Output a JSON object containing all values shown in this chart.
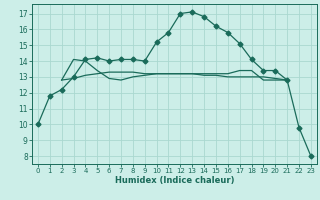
{
  "bg_color": "#cceee8",
  "grid_color": "#aad8d0",
  "line_color": "#1a6b5a",
  "xlabel": "Humidex (Indice chaleur)",
  "xlim": [
    -0.5,
    23.5
  ],
  "ylim": [
    7.5,
    17.6
  ],
  "yticks": [
    8,
    9,
    10,
    11,
    12,
    13,
    14,
    15,
    16,
    17
  ],
  "xticks": [
    0,
    1,
    2,
    3,
    4,
    5,
    6,
    7,
    8,
    9,
    10,
    11,
    12,
    13,
    14,
    15,
    16,
    17,
    18,
    19,
    20,
    21,
    22,
    23
  ],
  "curve1_x": [
    0,
    1,
    2,
    3,
    4,
    5,
    6,
    7,
    8,
    9,
    10,
    11,
    12,
    13,
    14,
    15,
    16,
    17,
    18,
    19,
    20,
    21,
    22,
    23
  ],
  "curve1_y": [
    10.0,
    11.8,
    12.2,
    13.0,
    14.1,
    14.2,
    14.0,
    14.1,
    14.1,
    14.0,
    15.2,
    15.8,
    17.0,
    17.1,
    16.8,
    16.2,
    15.8,
    15.1,
    14.1,
    13.4,
    13.4,
    12.8,
    9.8,
    8.0
  ],
  "curve2_x": [
    2,
    3,
    4,
    5,
    6,
    7,
    8,
    9,
    10,
    11,
    12,
    13,
    14,
    15,
    16,
    17,
    18,
    19,
    20,
    21
  ],
  "curve2_y": [
    12.8,
    14.1,
    14.0,
    13.4,
    12.9,
    12.8,
    13.0,
    13.1,
    13.2,
    13.2,
    13.2,
    13.2,
    13.2,
    13.2,
    13.2,
    13.4,
    13.4,
    12.8,
    12.8,
    12.8
  ],
  "curve3_x": [
    2,
    3,
    4,
    5,
    6,
    7,
    8,
    9,
    10,
    11,
    12,
    13,
    14,
    15,
    16,
    17,
    18,
    19,
    20,
    21
  ],
  "curve3_y": [
    12.8,
    12.9,
    13.1,
    13.2,
    13.3,
    13.3,
    13.3,
    13.2,
    13.2,
    13.2,
    13.2,
    13.2,
    13.1,
    13.1,
    13.0,
    13.0,
    13.0,
    13.0,
    12.9,
    12.8
  ]
}
